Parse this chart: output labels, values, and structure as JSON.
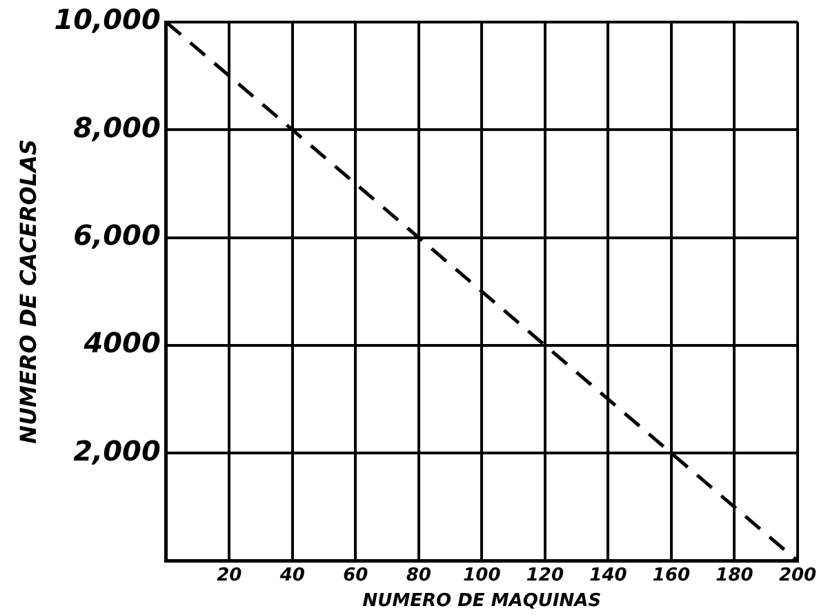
{
  "chart_data": {
    "type": "line",
    "xlabel": "NUMERO DE MAQUINAS",
    "ylabel": "NUMERO DE CACEROLAS",
    "x": [
      0,
      200
    ],
    "series": [
      {
        "color": "#000000",
        "values": [
          10000,
          0
        ]
      }
    ],
    "xlim": [
      0,
      200
    ],
    "xticks": [
      20,
      40,
      60,
      80,
      100,
      120,
      140,
      160,
      180,
      200
    ],
    "ylim": [
      0,
      10000
    ],
    "yticks": [
      {
        "value": 2000,
        "label": "2,000"
      },
      {
        "value": 4000,
        "label": "4000"
      },
      {
        "value": 6000,
        "label": "6,000"
      },
      {
        "value": 8000,
        "label": "8,000"
      },
      {
        "value": 10000,
        "label": "10,000"
      }
    ],
    "grid": true,
    "legend": false,
    "marker": "none",
    "line_style": "dashed"
  }
}
